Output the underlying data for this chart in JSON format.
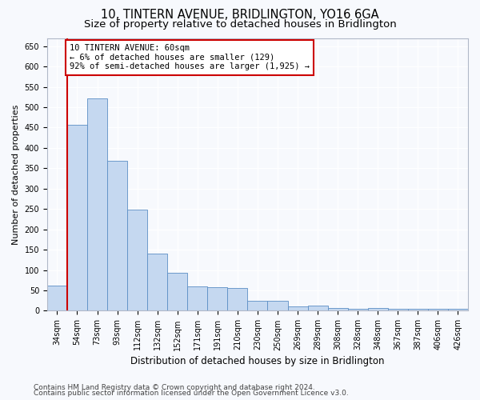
{
  "title": "10, TINTERN AVENUE, BRIDLINGTON, YO16 6GA",
  "subtitle": "Size of property relative to detached houses in Bridlington",
  "xlabel": "Distribution of detached houses by size in Bridlington",
  "ylabel": "Number of detached properties",
  "categories": [
    "34sqm",
    "54sqm",
    "73sqm",
    "93sqm",
    "112sqm",
    "132sqm",
    "152sqm",
    "171sqm",
    "191sqm",
    "210sqm",
    "230sqm",
    "250sqm",
    "269sqm",
    "289sqm",
    "308sqm",
    "328sqm",
    "348sqm",
    "367sqm",
    "387sqm",
    "406sqm",
    "426sqm"
  ],
  "values": [
    62,
    457,
    521,
    369,
    248,
    140,
    94,
    60,
    57,
    55,
    25,
    24,
    10,
    12,
    7,
    5,
    6,
    5,
    4,
    5,
    4
  ],
  "bar_color": "#c5d8f0",
  "bar_edge_color": "#5b8ec4",
  "red_line_color": "#cc0000",
  "annotation_line1": "10 TINTERN AVENUE: 60sqm",
  "annotation_line2": "← 6% of detached houses are smaller (129)",
  "annotation_line3": "92% of semi-detached houses are larger (1,925) →",
  "annotation_box_facecolor": "#ffffff",
  "annotation_box_edgecolor": "#cc0000",
  "ylim": [
    0,
    670
  ],
  "yticks": [
    0,
    50,
    100,
    150,
    200,
    250,
    300,
    350,
    400,
    450,
    500,
    550,
    600,
    650
  ],
  "footer1": "Contains HM Land Registry data © Crown copyright and database right 2024.",
  "footer2": "Contains public sector information licensed under the Open Government Licence v3.0.",
  "background_color": "#f7f9fd",
  "plot_background": "#f7f9fd",
  "grid_color": "#ffffff",
  "title_fontsize": 10.5,
  "subtitle_fontsize": 9.5,
  "ylabel_fontsize": 8,
  "xlabel_fontsize": 8.5,
  "tick_fontsize": 7,
  "annotation_fontsize": 7.5,
  "footer_fontsize": 6.5
}
